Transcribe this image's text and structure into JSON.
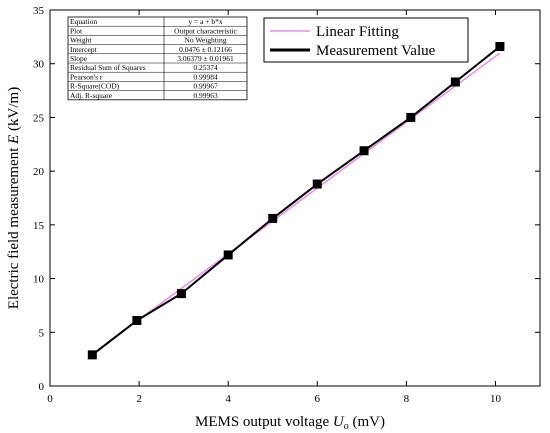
{
  "chart_data": {
    "type": "scatter",
    "xlabel_prefix": "MEMS output voltage ",
    "xlabel_var": "U",
    "xlabel_sub": "o",
    "xlabel_suffix": "  (mV)",
    "ylabel_prefix": "Electric field measurement ",
    "ylabel_var": "E",
    "ylabel_suffix": " (kV/m)",
    "xlim": [
      0,
      11
    ],
    "ylim": [
      0,
      35
    ],
    "xticks": [
      0,
      2,
      4,
      6,
      8,
      10
    ],
    "yticks": [
      0,
      5,
      10,
      15,
      20,
      25,
      30,
      35
    ],
    "grid": false,
    "legend_position": "top-right",
    "series": [
      {
        "name": "Linear Fitting",
        "kind": "fit-line",
        "color": "#e98ce9",
        "intercept": 0.0476,
        "slope": 3.06379,
        "x_range": [
          0.95,
          10.1
        ]
      },
      {
        "name": "Measurement Value",
        "kind": "line-markers",
        "color": "#000000",
        "x": [
          0.95,
          1.95,
          2.95,
          4.0,
          5.0,
          6.0,
          7.05,
          8.1,
          9.1,
          10.1
        ],
        "y": [
          2.9,
          6.1,
          8.6,
          12.2,
          15.6,
          18.8,
          21.9,
          25.0,
          28.3,
          31.6
        ]
      }
    ],
    "stats_table": [
      [
        "Equation",
        "y = a + b*x"
      ],
      [
        "Plot",
        "Output characteristic"
      ],
      [
        "Weight",
        "No Weighting"
      ],
      [
        "Intercept",
        "0.0476 ± 0.12166"
      ],
      [
        "Slope",
        "3.06379 ± 0.01961"
      ],
      [
        "Residual Sum of Squares",
        "0.25374"
      ],
      [
        "Pearson's r",
        "0.99984"
      ],
      [
        "R-Square(COD)",
        "0.99967"
      ],
      [
        "Adj. R-square",
        "0.99963"
      ]
    ]
  }
}
